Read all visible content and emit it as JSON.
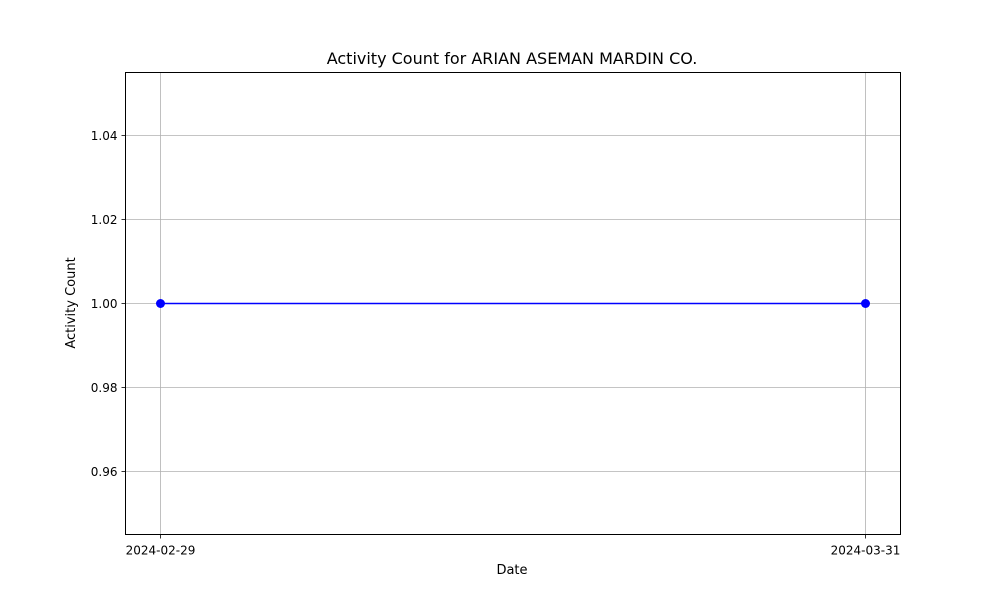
{
  "chart_data": {
    "type": "line",
    "title": "Activity Count for ARIAN ASEMAN MARDIN CO.",
    "xlabel": "Date",
    "ylabel": "Activity Count",
    "x": [
      "2024-02-29",
      "2024-03-31"
    ],
    "series": [
      {
        "values": [
          1.0,
          1.0
        ],
        "color": "#0000ff",
        "marker": "circle"
      }
    ],
    "xticks": [
      "2024-02-29",
      "2024-03-31"
    ],
    "yticks": [
      "0.96",
      "0.98",
      "1.00",
      "1.02",
      "1.04"
    ],
    "ylim": [
      0.945,
      1.055
    ],
    "grid": true
  }
}
